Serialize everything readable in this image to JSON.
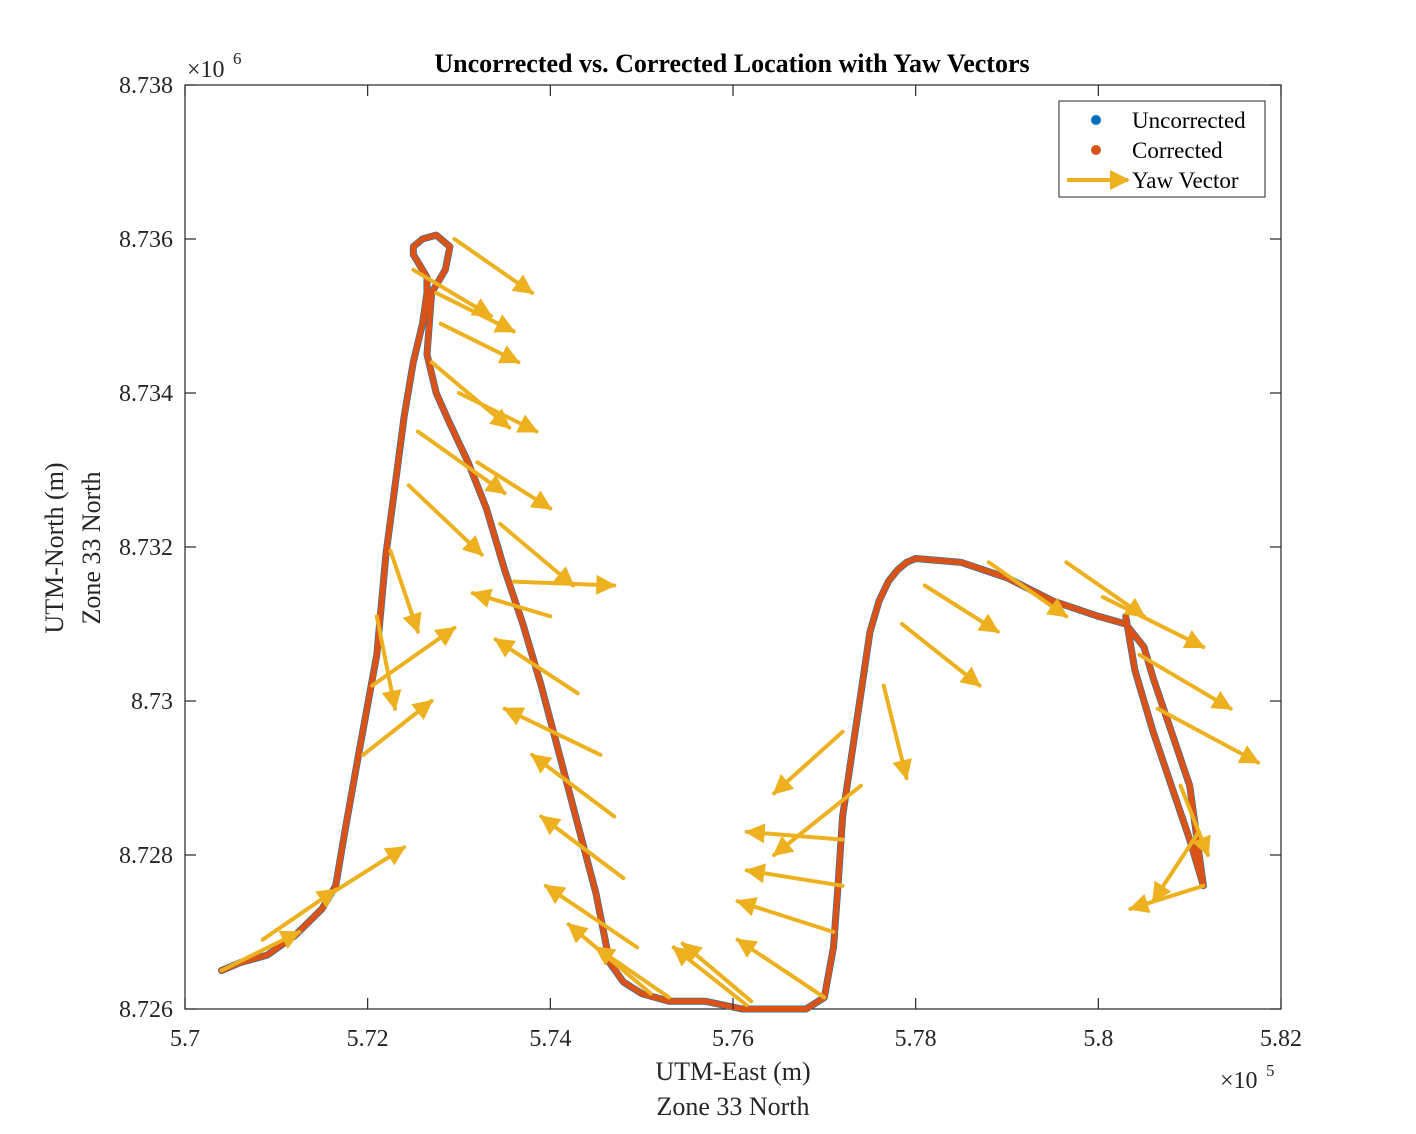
{
  "chart_data": {
    "type": "scatter",
    "title": "Uncorrected vs. Corrected Location with Yaw Vectors",
    "xlabel": [
      "UTM-East (m)",
      "Zone 33 North"
    ],
    "ylabel": [
      "UTM-North (m)",
      "Zone 33 North"
    ],
    "xlim": [
      570000,
      582000
    ],
    "ylim": [
      8726000,
      8738000
    ],
    "x_ticks": [
      570000,
      572000,
      574000,
      576000,
      578000,
      580000,
      582000
    ],
    "x_tick_labels": [
      "5.7",
      "5.72",
      "5.74",
      "5.76",
      "5.78",
      "5.8",
      "5.82"
    ],
    "y_ticks": [
      8726000,
      8728000,
      8730000,
      8732000,
      8734000,
      8736000,
      8738000
    ],
    "y_tick_labels": [
      "8.726",
      "8.728",
      "8.73",
      "8.732",
      "8.734",
      "8.736",
      "8.738"
    ],
    "x_exponent": {
      "base": "×10",
      "exp": "5"
    },
    "y_exponent": {
      "base": "×10",
      "exp": "6"
    },
    "legend_position": "top-right",
    "colors": {
      "uncorrected": "#0072BD",
      "corrected": "#D95319",
      "yaw": "#EDB120"
    },
    "series": [
      {
        "name": "Uncorrected",
        "kind": "points",
        "x": [
          570400,
          570600,
          570900,
          571200,
          571500,
          571650,
          571750,
          571900,
          572100,
          572200,
          572300,
          572400,
          572500,
          572600,
          572650,
          572650,
          572600,
          572500,
          572500,
          572600,
          572750,
          572900,
          572850,
          572700,
          572650,
          572750,
          572900,
          573100,
          573300,
          573500,
          573700,
          573900,
          574100,
          574300,
          574500,
          574650,
          574800,
          575000,
          575300,
          575700,
          576100,
          576500,
          576800,
          577000,
          577100,
          577150,
          577200,
          577300,
          577400,
          577500,
          577600,
          577700,
          577800,
          577900,
          578000,
          578500,
          579000,
          579500,
          580000,
          580300,
          580500,
          580600,
          580800,
          581000,
          581150,
          581000,
          580800,
          580600,
          580400,
          580300
        ],
        "y": [
          8726500,
          8726600,
          8726700,
          8726950,
          8727300,
          8727600,
          8728300,
          8729300,
          8730600,
          8731900,
          8732800,
          8733700,
          8734400,
          8734900,
          8735300,
          8735500,
          8735600,
          8735800,
          8735900,
          8736000,
          8736050,
          8735900,
          8735600,
          8735300,
          8734500,
          8734000,
          8733600,
          8733100,
          8732500,
          8731700,
          8731000,
          8730200,
          8729300,
          8728400,
          8727500,
          8726600,
          8726350,
          8726200,
          8726100,
          8726100,
          8726000,
          8726000,
          8726000,
          8726150,
          8726800,
          8727600,
          8728500,
          8729300,
          8730100,
          8730900,
          8731300,
          8731550,
          8731700,
          8731800,
          8731850,
          8731800,
          8731600,
          8731300,
          8731100,
          8731000,
          8730700,
          8730300,
          8729600,
          8728900,
          8727600,
          8728200,
          8728900,
          8729600,
          8730400,
          8731100
        ]
      },
      {
        "name": "Corrected",
        "kind": "points",
        "x": [
          570400,
          570600,
          570900,
          571200,
          571500,
          571650,
          571750,
          571900,
          572100,
          572200,
          572300,
          572400,
          572500,
          572600,
          572650,
          572650,
          572600,
          572500,
          572500,
          572600,
          572750,
          572900,
          572850,
          572700,
          572650,
          572750,
          572900,
          573100,
          573300,
          573500,
          573700,
          573900,
          574100,
          574300,
          574500,
          574650,
          574800,
          575000,
          575300,
          575700,
          576100,
          576500,
          576800,
          577000,
          577100,
          577150,
          577200,
          577300,
          577400,
          577500,
          577600,
          577700,
          577800,
          577900,
          578000,
          578500,
          579000,
          579500,
          580000,
          580300,
          580500,
          580600,
          580800,
          581000,
          581150,
          581000,
          580800,
          580600,
          580400,
          580300
        ],
        "y": [
          8726500,
          8726600,
          8726700,
          8726950,
          8727300,
          8727600,
          8728300,
          8729300,
          8730600,
          8731900,
          8732800,
          8733700,
          8734400,
          8734900,
          8735300,
          8735500,
          8735600,
          8735800,
          8735900,
          8736000,
          8736050,
          8735900,
          8735600,
          8735300,
          8734500,
          8734000,
          8733600,
          8733100,
          8732500,
          8731700,
          8731000,
          8730200,
          8729300,
          8728400,
          8727500,
          8726600,
          8726350,
          8726200,
          8726100,
          8726100,
          8726000,
          8726000,
          8726000,
          8726150,
          8726800,
          8727600,
          8728500,
          8729300,
          8730100,
          8730900,
          8731300,
          8731550,
          8731700,
          8731800,
          8731850,
          8731800,
          8731600,
          8731300,
          8731100,
          8731000,
          8730700,
          8730300,
          8729600,
          8728900,
          8727600,
          8728200,
          8728900,
          8729600,
          8730400,
          8731100
        ]
      },
      {
        "name": "Yaw Vector",
        "kind": "arrows",
        "vectors": [
          [
            570400,
            8726500,
            571250,
            8727000
          ],
          [
            570850,
            8726900,
            571650,
            8727550
          ],
          [
            571600,
            8727500,
            572400,
            8728100
          ],
          [
            571950,
            8729300,
            572700,
            8730000
          ],
          [
            572050,
            8730200,
            572950,
            8730950
          ],
          [
            572100,
            8731100,
            572300,
            8729900
          ],
          [
            572250,
            8731950,
            572550,
            8730900
          ],
          [
            572450,
            8732800,
            573250,
            8731900
          ],
          [
            572550,
            8733500,
            573500,
            8732700
          ],
          [
            572700,
            8734400,
            573550,
            8733550
          ],
          [
            573200,
            8733100,
            574000,
            8732500
          ],
          [
            573000,
            8734000,
            573850,
            8733500
          ],
          [
            572800,
            8734900,
            573650,
            8734400
          ],
          [
            572750,
            8735300,
            573600,
            8734800
          ],
          [
            572500,
            8735600,
            573350,
            8735000
          ],
          [
            572950,
            8736000,
            573800,
            8735300
          ],
          [
            573600,
            8731550,
            574700,
            8731500
          ],
          [
            573450,
            8732300,
            574250,
            8731500
          ],
          [
            574000,
            8731100,
            573150,
            8731400
          ],
          [
            574300,
            8730100,
            573400,
            8730800
          ],
          [
            574550,
            8729300,
            573500,
            8729900
          ],
          [
            574700,
            8728500,
            573800,
            8729300
          ],
          [
            574800,
            8727700,
            573900,
            8728500
          ],
          [
            574950,
            8726800,
            573950,
            8727600
          ],
          [
            575100,
            8726200,
            574200,
            8727100
          ],
          [
            575300,
            8726150,
            574500,
            8726800
          ],
          [
            576150,
            8726050,
            575350,
            8726800
          ],
          [
            576200,
            8726100,
            575450,
            8726850
          ],
          [
            577000,
            8726150,
            576050,
            8726900
          ],
          [
            577100,
            8727000,
            576050,
            8727400
          ],
          [
            577200,
            8727600,
            576150,
            8727800
          ],
          [
            577200,
            8728200,
            576150,
            8728300
          ],
          [
            577400,
            8728900,
            576450,
            8728000
          ],
          [
            577200,
            8729600,
            576450,
            8728800
          ],
          [
            577650,
            8730200,
            577900,
            8729000
          ],
          [
            577850,
            8731000,
            578700,
            8730200
          ],
          [
            578100,
            8731500,
            578900,
            8730900
          ],
          [
            578800,
            8731800,
            579650,
            8731100
          ],
          [
            579650,
            8731800,
            580500,
            8731100
          ],
          [
            580050,
            8731350,
            581150,
            8730700
          ],
          [
            580450,
            8730600,
            581450,
            8729900
          ],
          [
            580650,
            8729900,
            581750,
            8729200
          ],
          [
            580900,
            8728900,
            581200,
            8728000
          ],
          [
            581150,
            8727600,
            580350,
            8727300
          ],
          [
            581100,
            8728300,
            580600,
            8727400
          ]
        ]
      }
    ]
  }
}
